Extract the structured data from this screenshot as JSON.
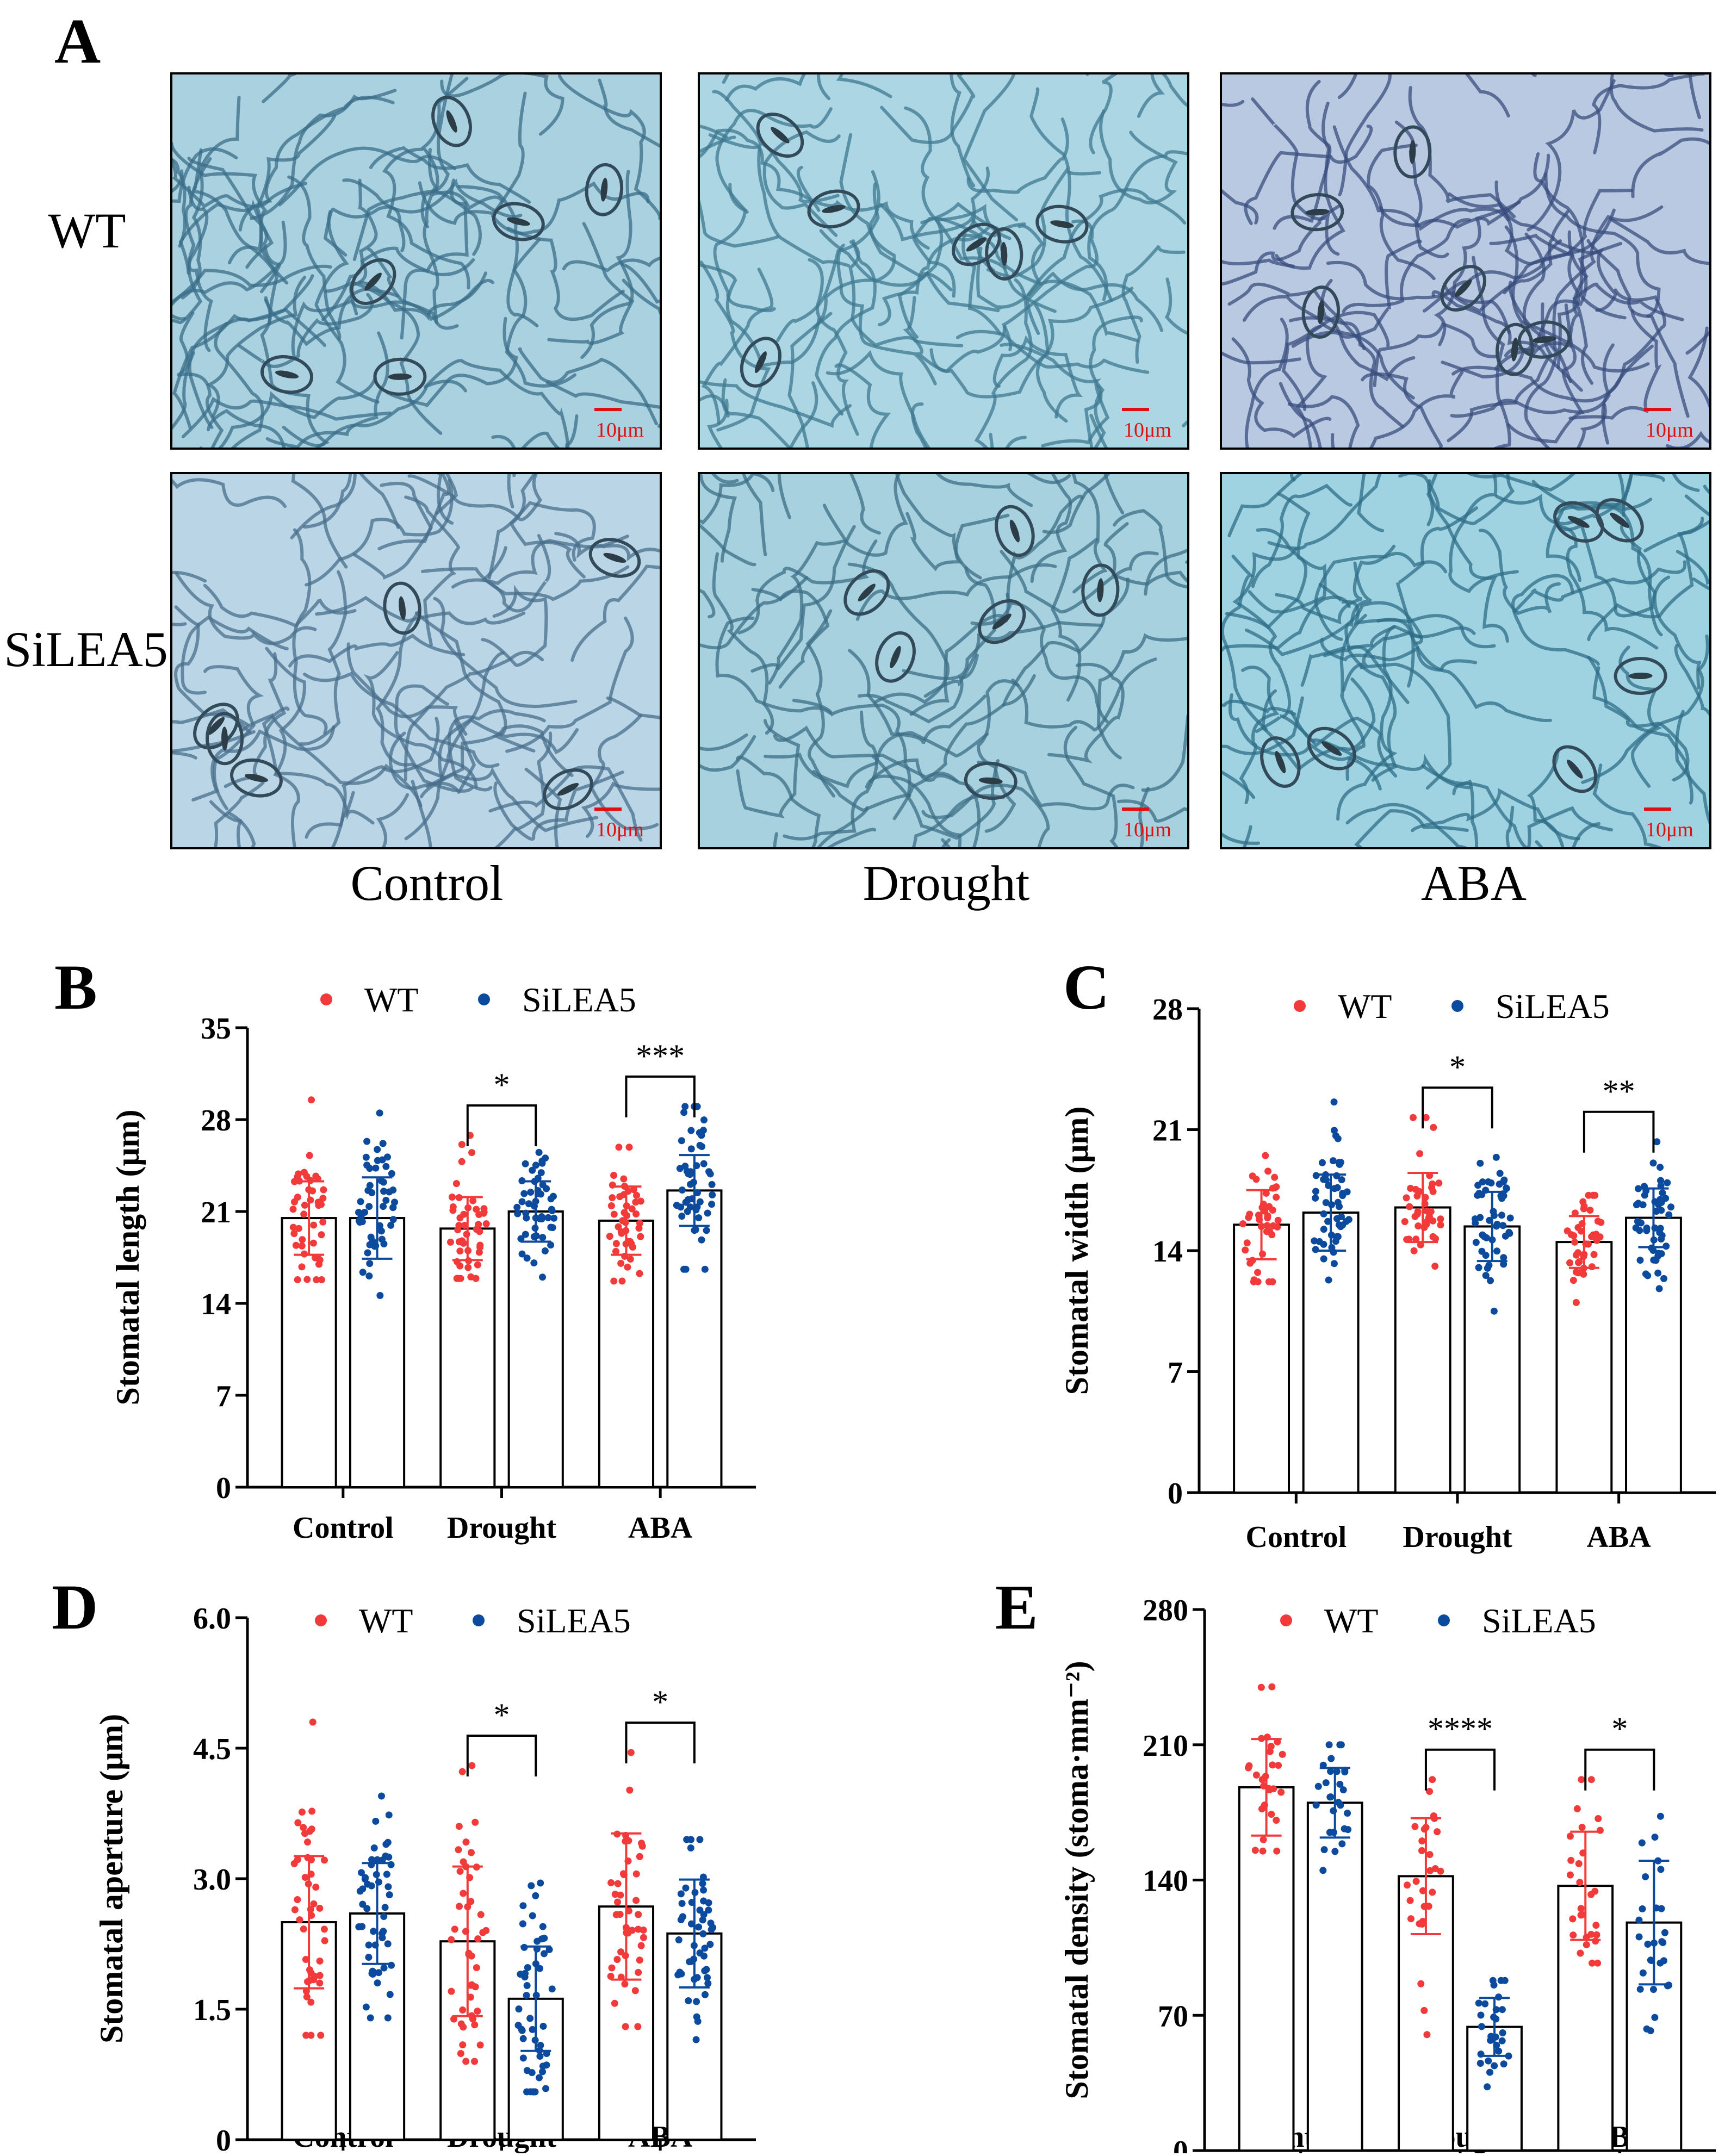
{
  "panel_a": {
    "label": "A",
    "row_labels": [
      "WT",
      "SiLEA5"
    ],
    "col_labels": [
      "Control",
      "Drought",
      "ABA"
    ],
    "scale_bar": "10μm",
    "tiles": [
      {
        "row": 0,
        "col": 0,
        "tone": "#a9d1e0",
        "line": "#3b6e8a",
        "seed": 11
      },
      {
        "row": 0,
        "col": 1,
        "tone": "#acd6e3",
        "line": "#3f7890",
        "seed": 23
      },
      {
        "row": 0,
        "col": 2,
        "tone": "#b9c9e1",
        "line": "#3a4e7e",
        "seed": 37
      },
      {
        "row": 1,
        "col": 0,
        "tone": "#bad5e6",
        "line": "#4a6f8c",
        "seed": 41
      },
      {
        "row": 1,
        "col": 1,
        "tone": "#a7d1de",
        "line": "#3c6d85",
        "seed": 53
      },
      {
        "row": 1,
        "col": 2,
        "tone": "#9fd3e1",
        "line": "#2f6d87",
        "seed": 67
      }
    ]
  },
  "legend": {
    "wt": "WT",
    "silea5": "SiLEA5"
  },
  "colors": {
    "wt": "#f23a3a",
    "silea5": "#0c4a9e"
  },
  "chart_data": [
    {
      "panel": "B",
      "type": "bar",
      "categories": [
        "Control",
        "Drought",
        "ABA"
      ],
      "ylabel": "Stomatal length (μm)",
      "ylim": [
        0,
        35
      ],
      "yticks": [
        0,
        7,
        14,
        21,
        28,
        35
      ],
      "series": [
        {
          "name": "WT",
          "values": [
            20.5,
            19.7,
            20.3
          ],
          "sd": [
            2.8,
            2.4,
            2.6
          ],
          "min": [
            15.8,
            15.9,
            15.7
          ],
          "max": [
            29.5,
            26.8,
            25.9
          ],
          "n": 45
        },
        {
          "name": "SiLEA5",
          "values": [
            20.5,
            21.0,
            22.6
          ],
          "sd": [
            3.1,
            2.3,
            2.7
          ],
          "min": [
            14.6,
            16.0,
            16.6
          ],
          "max": [
            28.5,
            25.5,
            29.0
          ],
          "n": 50
        }
      ],
      "significance": [
        {
          "category": "Drought",
          "label": "*"
        },
        {
          "category": "ABA",
          "label": "***"
        }
      ]
    },
    {
      "panel": "C",
      "type": "bar",
      "categories": [
        "Control",
        "Drought",
        "ABA"
      ],
      "ylabel": "Stomatal width (μm)",
      "ylim": [
        0,
        28
      ],
      "yticks": [
        0,
        7,
        14,
        21,
        28
      ],
      "series": [
        {
          "name": "WT",
          "values": [
            15.5,
            16.5,
            14.5
          ],
          "sd": [
            2.0,
            2.0,
            1.5
          ],
          "min": [
            12.2,
            13.1,
            11.0
          ],
          "max": [
            19.5,
            21.7,
            17.2
          ],
          "n": 40
        },
        {
          "name": "SiLEA5",
          "values": [
            16.2,
            15.4,
            15.9
          ],
          "sd": [
            2.2,
            2.0,
            1.7
          ],
          "min": [
            12.3,
            10.5,
            11.8
          ],
          "max": [
            22.6,
            19.4,
            20.3
          ],
          "n": 50
        }
      ],
      "significance": [
        {
          "category": "Drought",
          "label": "*"
        },
        {
          "category": "ABA",
          "label": "**"
        }
      ]
    },
    {
      "panel": "D",
      "type": "bar",
      "categories": [
        "Control",
        "Drought",
        "ABA"
      ],
      "ylabel": "Stomatal aperture (μm)",
      "ylim": [
        0,
        6.0
      ],
      "yticks": [
        0,
        1.5,
        3.0,
        4.5,
        6.0
      ],
      "ytick_labels": [
        "0",
        "1.5",
        "3.0",
        "4.5",
        "6.0"
      ],
      "series": [
        {
          "name": "WT",
          "values": [
            2.5,
            2.28,
            2.68
          ],
          "sd": [
            0.76,
            0.86,
            0.84
          ],
          "min": [
            1.2,
            0.9,
            1.3
          ],
          "max": [
            4.8,
            4.3,
            4.45
          ],
          "n": 45
        },
        {
          "name": "SiLEA5",
          "values": [
            2.6,
            1.62,
            2.37
          ],
          "sd": [
            0.58,
            0.6,
            0.62
          ],
          "min": [
            1.4,
            0.55,
            1.15
          ],
          "max": [
            3.95,
            2.95,
            3.45
          ],
          "n": 50
        }
      ],
      "significance": [
        {
          "category": "Drought",
          "label": "*"
        },
        {
          "category": "ABA",
          "label": "*"
        }
      ]
    },
    {
      "panel": "E",
      "type": "bar",
      "categories": [
        "Control",
        "Drought",
        "ABA"
      ],
      "ylabel": "Stomatal density (stoma·mm⁻²)",
      "ylim": [
        0,
        280
      ],
      "yticks": [
        0,
        70,
        140,
        210,
        280
      ],
      "series": [
        {
          "name": "WT",
          "values": [
            188,
            142,
            137
          ],
          "sd": [
            25,
            30,
            28
          ],
          "min": [
            155,
            60,
            97
          ],
          "max": [
            240,
            192,
            192
          ],
          "n": 28
        },
        {
          "name": "SiLEA5",
          "values": [
            180,
            64,
            118
          ],
          "sd": [
            18,
            15,
            32
          ],
          "min": [
            145,
            33,
            62
          ],
          "max": [
            210,
            88,
            173
          ],
          "n": 28
        }
      ],
      "significance": [
        {
          "category": "Drought",
          "label": "****"
        },
        {
          "category": "ABA",
          "label": "*"
        }
      ]
    }
  ]
}
